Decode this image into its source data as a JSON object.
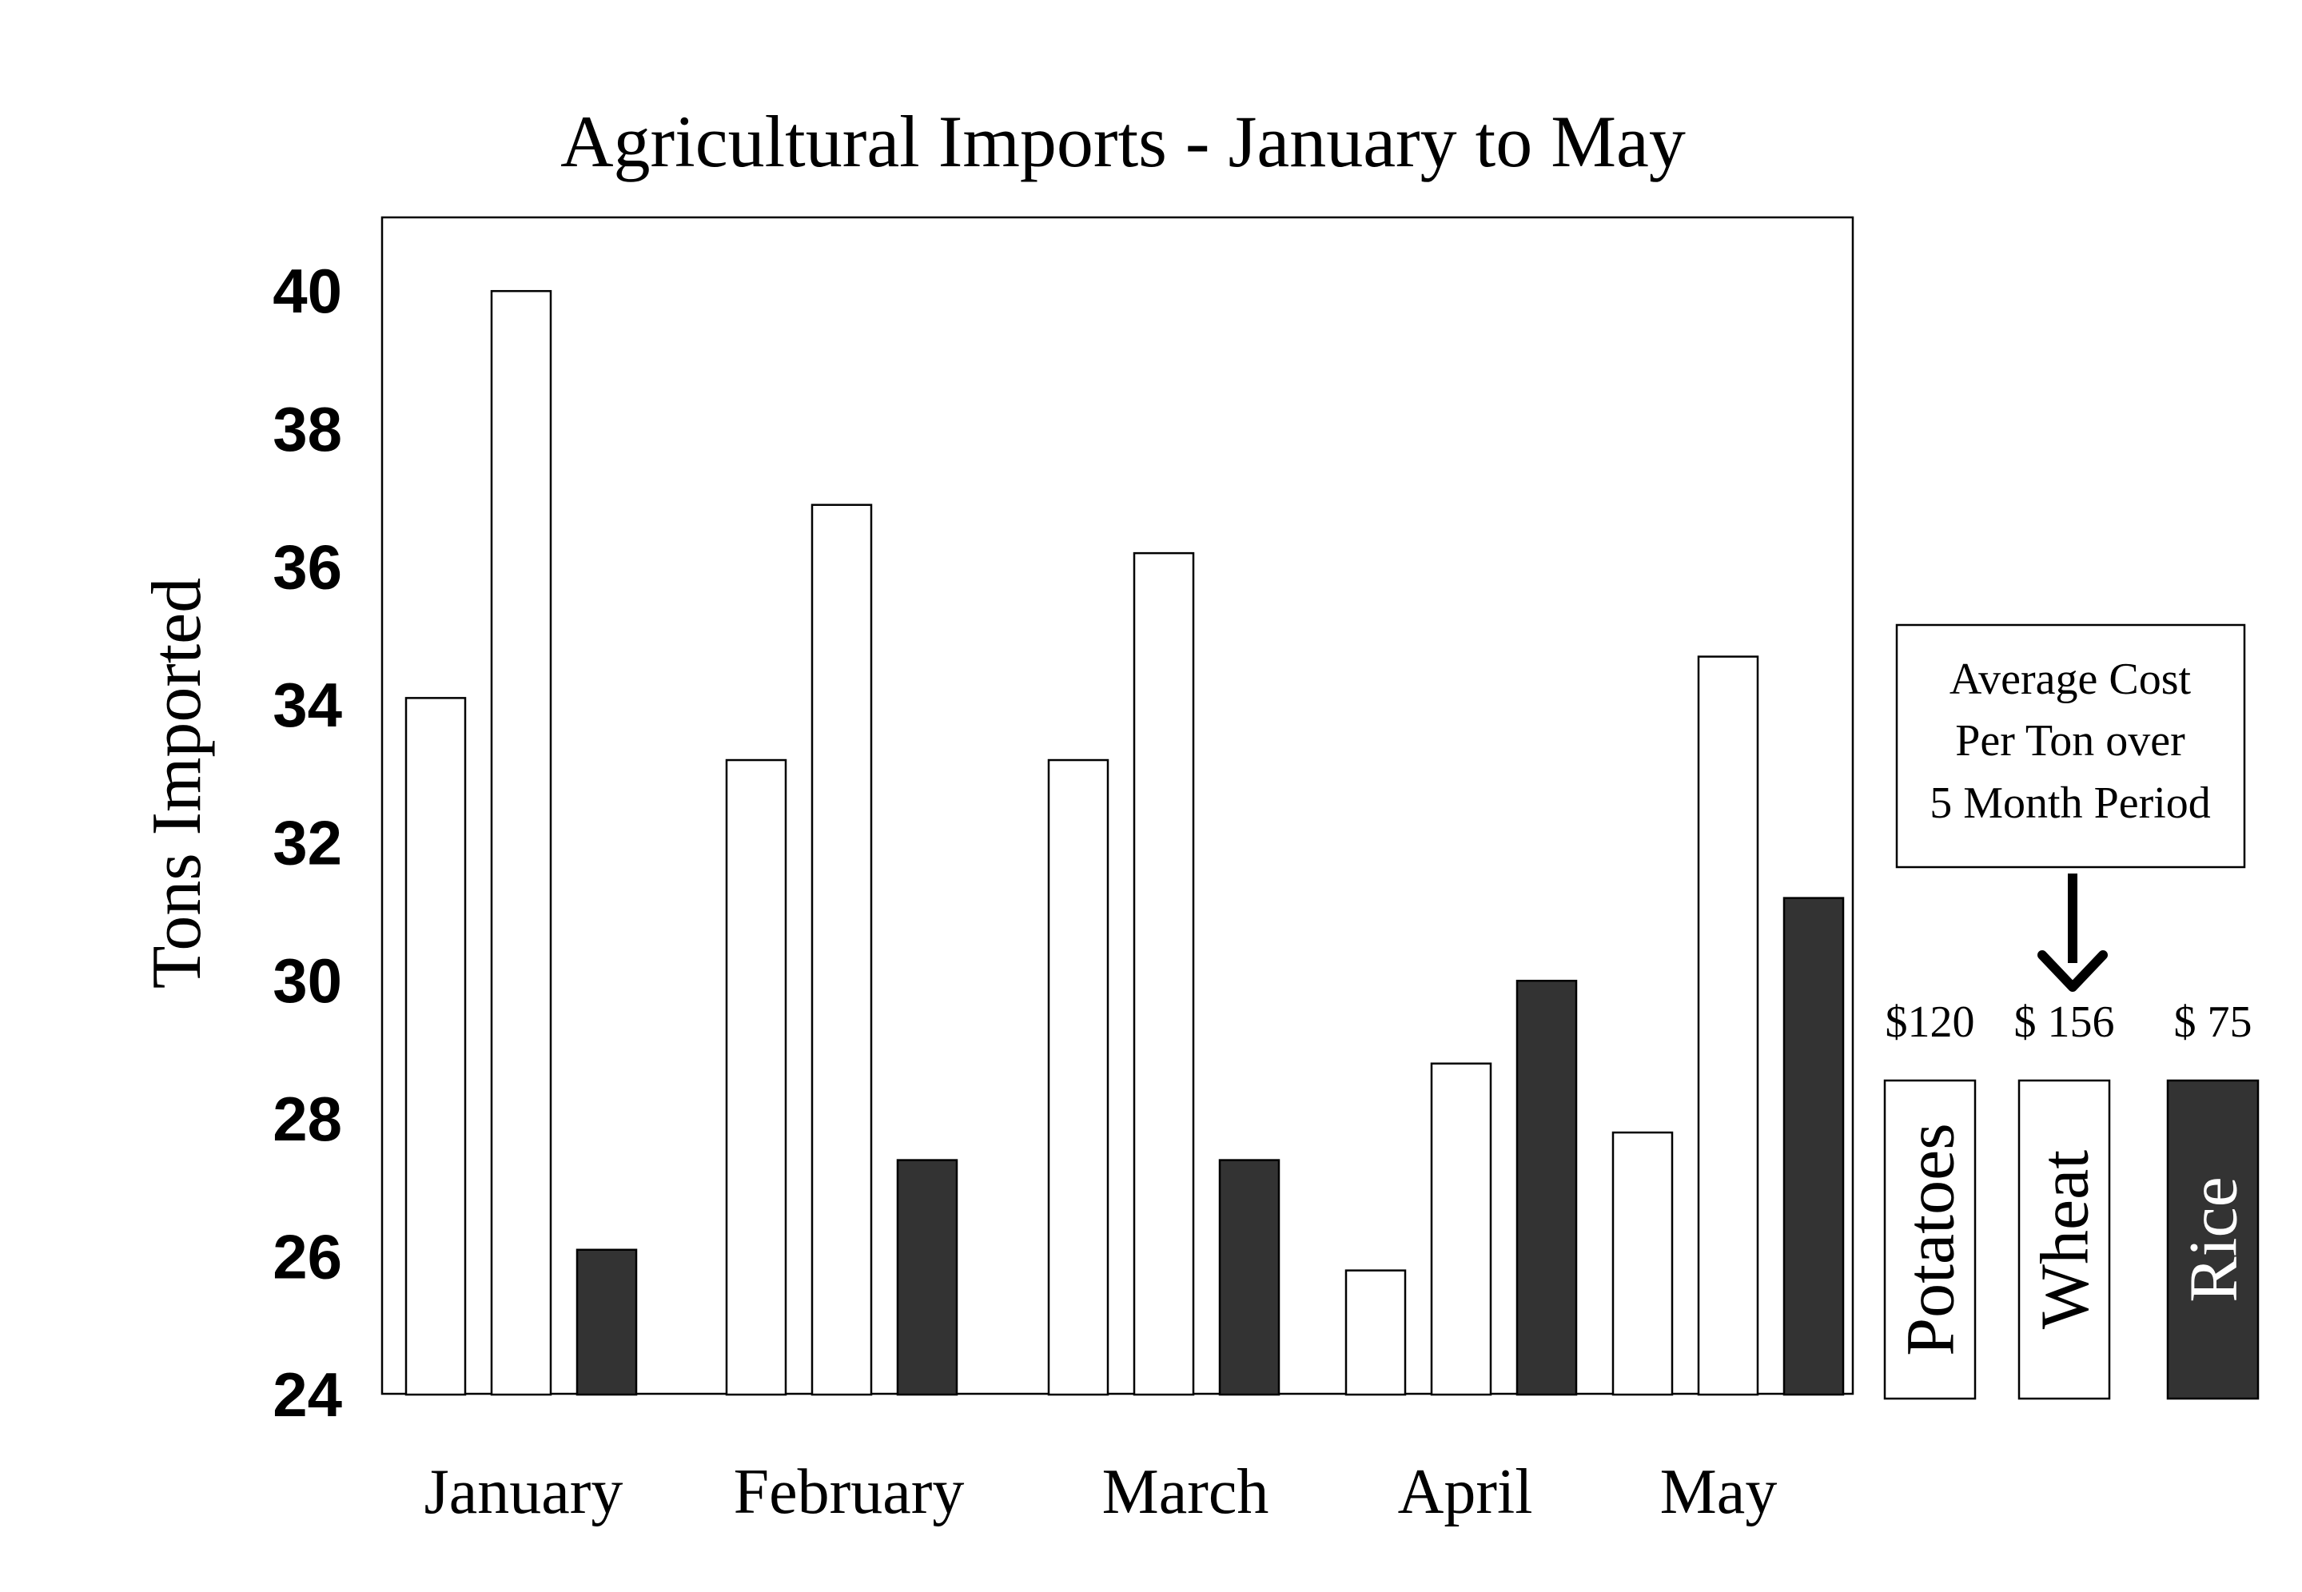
{
  "chart_data": {
    "type": "bar",
    "title": "Agricultural Imports - January to May",
    "xlabel": "",
    "ylabel": "Tons Imported",
    "ylim": [
      24,
      41
    ],
    "yticks": [
      24,
      26,
      28,
      30,
      32,
      34,
      36,
      38,
      40
    ],
    "categories": [
      "January",
      "February",
      "March",
      "April",
      "May"
    ],
    "grid": false,
    "legend_position": "right",
    "series": [
      {
        "name": "Potatoes",
        "color": "#ffffff",
        "price": "$120",
        "values": [
          34.1,
          33.2,
          33.2,
          25.8,
          27.8
        ]
      },
      {
        "name": "Wheat",
        "color": "#ffffff",
        "price": "$ 156",
        "values": [
          40.0,
          36.9,
          36.2,
          28.8,
          34.7
        ]
      },
      {
        "name": "Rice",
        "color": "#333333",
        "price": "$ 75",
        "values": [
          26.1,
          27.4,
          27.4,
          30.0,
          31.2
        ]
      }
    ],
    "annotation": {
      "lines": [
        "Average Cost",
        "Per Ton over",
        "5 Month Period"
      ]
    }
  }
}
